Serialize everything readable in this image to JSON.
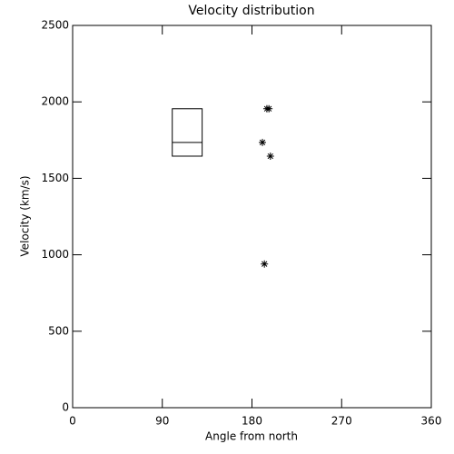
{
  "chart_data": {
    "type": "scatter",
    "title": "Velocity distribution",
    "x_label": "Angle from north",
    "y_label": "Velocity (km/s)",
    "x": [
      195,
      197,
      190.5,
      198.5,
      192.5
    ],
    "values": [
      1955,
      1955,
      1735,
      1645,
      940
    ],
    "box": {
      "x0": 100,
      "x1": 130,
      "low": 1645,
      "median": 1735,
      "high": 1955
    },
    "xlim": [
      0,
      360
    ],
    "xticks": [
      0,
      90,
      180,
      270,
      360
    ],
    "ylim": [
      0,
      2500
    ],
    "yticks": [
      0,
      500,
      1000,
      1500,
      2000,
      2500
    ],
    "color": "#000000"
  }
}
